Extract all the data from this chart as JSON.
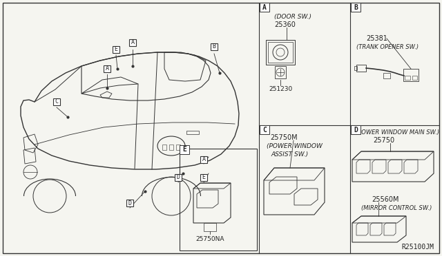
{
  "bg_color": "#f5f5f0",
  "line_color": "#333333",
  "text_color": "#222222",
  "diagram_ref": "R25100JM",
  "panel_A_texts": [
    "(DOOR SW.)",
    "25360",
    "251230"
  ],
  "panel_B_texts": [
    "25381",
    "(TRANK OPENER SW.)"
  ],
  "panel_C_texts": [
    "25750M",
    "(POWER WINDOW",
    "ASSIST SW.)"
  ],
  "panel_D_texts": [
    "(POWER WINDOW MAIN SW.)",
    "25750",
    "25560M",
    "(MIRROR CONTROL SW.)"
  ],
  "panel_E_text": "25750NA",
  "callout_letters": [
    "A",
    "A",
    "B",
    "C",
    "D",
    "D",
    "E",
    "E",
    "A"
  ],
  "fig_w": 6.4,
  "fig_h": 3.72,
  "dpi": 100
}
